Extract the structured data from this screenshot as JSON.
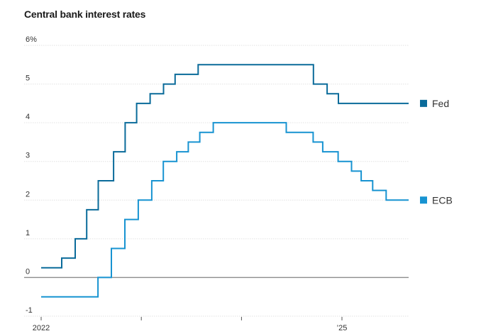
{
  "chart_data": {
    "type": "line",
    "title": "Central bank interest rates",
    "xlabel": "",
    "ylabel": "",
    "ylim": [
      -1,
      6
    ],
    "xlim": [
      "2022-01-01",
      "2025-09-01"
    ],
    "y_ticks": [
      {
        "value": 6,
        "label": "6%"
      },
      {
        "value": 5,
        "label": "5"
      },
      {
        "value": 4,
        "label": "4"
      },
      {
        "value": 3,
        "label": "3"
      },
      {
        "value": 2,
        "label": "2"
      },
      {
        "value": 1,
        "label": "1"
      },
      {
        "value": 0,
        "label": "0"
      },
      {
        "value": -1,
        "label": "-1"
      }
    ],
    "x_ticks": [
      {
        "value": "2022-01-01",
        "label": "2022"
      },
      {
        "value": "2023-01-01",
        "label": ""
      },
      {
        "value": "2024-01-01",
        "label": ""
      },
      {
        "value": "2025-01-01",
        "label": "’25"
      }
    ],
    "grid": true,
    "legend_placement": "right, labels at line ends",
    "step": true,
    "series": [
      {
        "name": "Fed",
        "color": "#0a6b9a",
        "points": [
          [
            "2022-01-01",
            0.25
          ],
          [
            "2022-03-17",
            0.5
          ],
          [
            "2022-05-05",
            1.0
          ],
          [
            "2022-06-16",
            1.75
          ],
          [
            "2022-07-28",
            2.5
          ],
          [
            "2022-09-22",
            3.25
          ],
          [
            "2022-11-03",
            4.0
          ],
          [
            "2022-12-15",
            4.5
          ],
          [
            "2023-02-02",
            4.75
          ],
          [
            "2023-03-23",
            5.0
          ],
          [
            "2023-05-04",
            5.25
          ],
          [
            "2023-07-27",
            5.5
          ],
          [
            "2024-09-19",
            5.0
          ],
          [
            "2024-11-08",
            4.75
          ],
          [
            "2024-12-19",
            4.5
          ],
          [
            "2025-09-01",
            4.5
          ]
        ]
      },
      {
        "name": "ECB",
        "color": "#1793d1",
        "points": [
          [
            "2022-01-01",
            -0.5
          ],
          [
            "2022-07-27",
            0.0
          ],
          [
            "2022-09-14",
            0.75
          ],
          [
            "2022-11-02",
            1.5
          ],
          [
            "2022-12-21",
            2.0
          ],
          [
            "2023-02-08",
            2.5
          ],
          [
            "2023-03-22",
            3.0
          ],
          [
            "2023-05-10",
            3.25
          ],
          [
            "2023-06-21",
            3.5
          ],
          [
            "2023-08-02",
            3.75
          ],
          [
            "2023-09-20",
            4.0
          ],
          [
            "2024-06-12",
            3.75
          ],
          [
            "2024-09-18",
            3.5
          ],
          [
            "2024-10-23",
            3.25
          ],
          [
            "2024-12-18",
            3.0
          ],
          [
            "2025-02-05",
            2.75
          ],
          [
            "2025-03-12",
            2.5
          ],
          [
            "2025-04-23",
            2.25
          ],
          [
            "2025-06-11",
            2.0
          ],
          [
            "2025-09-01",
            2.0
          ]
        ]
      }
    ]
  }
}
